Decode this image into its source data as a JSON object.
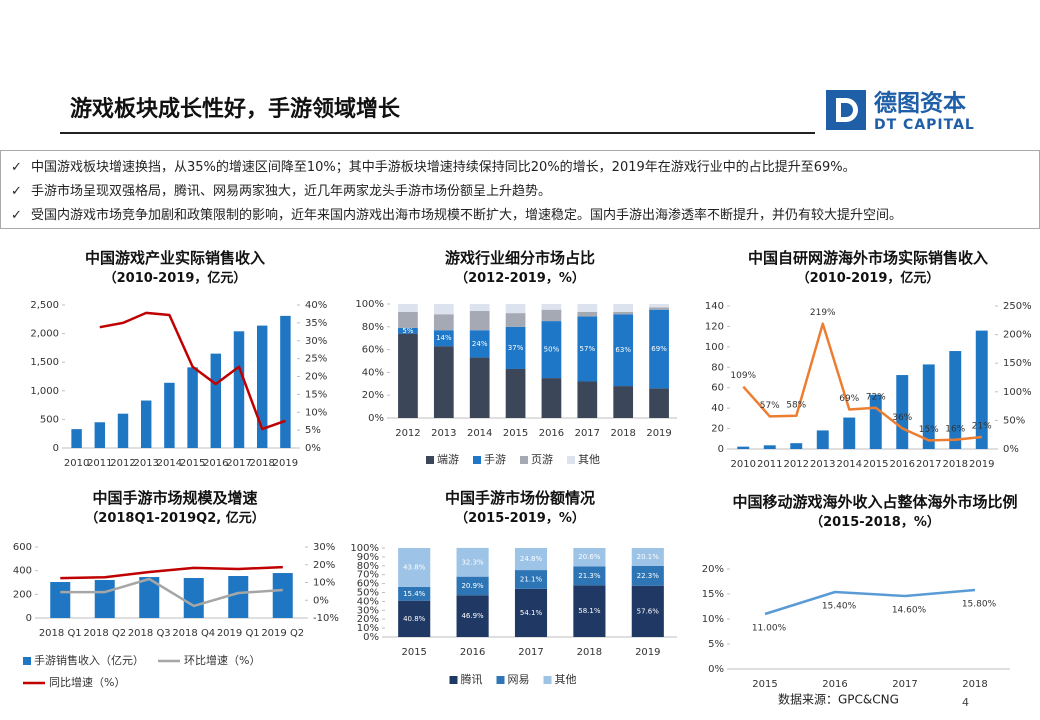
{
  "header": {
    "title": "游戏板块成长性好，手游领域增长",
    "logo_name": "德图资本",
    "logo_subtitle": "DT CAPITAL"
  },
  "bullets": [
    "中国游戏板块增速换挡，从35%的增速区间降至10%；其中手游板块增速持续保持同比20%的增长，2019年在游戏行业中的占比提升至69%。",
    "手游市场呈现双强格局，腾讯、网易两家独大，近几年两家龙头手游市场份额呈上升趋势。",
    "受国内游戏市场竞争加剧和政策限制的影响，近年来国内游戏出海市场规模不断扩大，增速稳定。国内手游出海渗透率不断提升，并仍有较大提升空间。"
  ],
  "chart_data": [
    {
      "type": "bar",
      "title": "中国游戏产业实际销售收入",
      "subtitle": "（2010-2019，亿元）",
      "categories": [
        "2010",
        "2011",
        "2012",
        "2013",
        "2014",
        "2015",
        "2016",
        "2017",
        "2018",
        "2019"
      ],
      "series": [
        {
          "type": "bar",
          "color": "#1f77c3",
          "values": [
            330,
            450,
            600,
            830,
            1140,
            1410,
            1650,
            2040,
            2140,
            2310
          ]
        },
        {
          "type": "line",
          "axis": "y2",
          "color": "#c00000",
          "values": [
            null,
            33.8,
            35,
            37.8,
            37.2,
            22.7,
            17.9,
            22.7,
            5.3,
            7.6
          ]
        }
      ],
      "ylim": [
        0,
        2500
      ],
      "yticks": [
        0,
        500,
        {
          "value": 1000,
          "label": "1,000"
        },
        {
          "value": 1500,
          "label": "1,500"
        },
        {
          "value": 2000,
          "label": "2,000"
        },
        {
          "value": 2500,
          "label": "2,500"
        }
      ],
      "y2lim": [
        0,
        40
      ],
      "y2ticks": [
        {
          "value": 0,
          "label": "0%"
        },
        {
          "value": 5,
          "label": "5%"
        },
        {
          "value": 10,
          "label": "10%"
        },
        {
          "value": 15,
          "label": "15%"
        },
        {
          "value": 20,
          "label": "20%"
        },
        {
          "value": 25,
          "label": "25%"
        },
        {
          "value": 30,
          "label": "30%"
        },
        {
          "value": 35,
          "label": "35%"
        },
        {
          "value": 40,
          "label": "40%"
        }
      ]
    },
    {
      "type": "stacked_bar",
      "title": "游戏行业细分市场占比",
      "subtitle": "（2012-2019，%）",
      "legend": "bottom",
      "categories": [
        "2012",
        "2013",
        "2014",
        "2015",
        "2016",
        "2017",
        "2018",
        "2019"
      ],
      "series": [
        {
          "name": "端游",
          "color": "#3b4658",
          "values": [
            74,
            63,
            53,
            43,
            35,
            32,
            28,
            26
          ]
        },
        {
          "name": "手游",
          "color": "#1f77c8",
          "values": [
            5,
            14,
            24,
            37,
            50,
            57,
            63,
            69
          ],
          "value_labels": [
            "5%",
            "14%",
            "24%",
            "37%",
            "50%",
            "57%",
            "63%",
            "69%"
          ]
        },
        {
          "name": "页游",
          "color": "#a5a9b4",
          "values": [
            14,
            14,
            17,
            12,
            10,
            4,
            2,
            2
          ]
        },
        {
          "name": "其他",
          "color": "#dde3ee",
          "values": [
            7,
            9,
            6,
            8,
            5,
            7,
            7,
            3
          ]
        }
      ],
      "ylim": [
        0,
        100
      ],
      "yticks": [
        {
          "value": 0,
          "label": "0%"
        },
        {
          "value": 20,
          "label": "20%"
        },
        {
          "value": 40,
          "label": "40%"
        },
        {
          "value": 60,
          "label": "60%"
        },
        {
          "value": 80,
          "label": "80%"
        },
        {
          "value": 100,
          "label": "100%"
        }
      ]
    },
    {
      "type": "bar",
      "title": "中国自研网游海外市场实际销售收入",
      "subtitle": "（2010-2019，亿元）",
      "categories": [
        "2010",
        "2011",
        "2012",
        "2013",
        "2014",
        "2015",
        "2016",
        "2017",
        "2018",
        "2019"
      ],
      "series": [
        {
          "type": "bar",
          "color": "#1f77c3",
          "values": [
            2.3,
            3.6,
            5.7,
            18.2,
            30.8,
            53.1,
            72.4,
            82.8,
            95.9,
            115.9
          ]
        },
        {
          "type": "line",
          "axis": "y2",
          "color": "#ed7d31",
          "values": [
            109,
            57,
            58,
            219,
            69,
            72,
            36,
            15,
            16,
            21
          ],
          "value_labels": [
            "109%",
            "57%",
            "58%",
            "219%",
            "69%",
            "72%",
            "36%",
            "15%",
            "16%",
            "21%"
          ]
        }
      ],
      "ylim": [
        0,
        140
      ],
      "yticks": [
        0,
        20,
        40,
        60,
        80,
        100,
        120,
        140
      ],
      "y2lim": [
        0,
        250
      ],
      "y2ticks": [
        {
          "value": 0,
          "label": "0%"
        },
        {
          "value": 50,
          "label": "50%"
        },
        {
          "value": 100,
          "label": "100%"
        },
        {
          "value": 150,
          "label": "150%"
        },
        {
          "value": 200,
          "label": "200%"
        },
        {
          "value": 250,
          "label": "250%"
        }
      ]
    },
    {
      "type": "bar",
      "title": "中国手游市场规模及增速",
      "subtitle": "（2018Q1-2019Q2, 亿元）",
      "legend": "bottom",
      "categories": [
        "2018 Q1",
        "2018 Q2",
        "2018 Q3",
        "2018 Q4",
        "2019 Q1",
        "2019 Q2"
      ],
      "series": [
        {
          "type": "bar",
          "name": "手游销售收入（亿元）",
          "color": "#1f77c3",
          "values": [
            304,
            321,
            346,
            338,
            355,
            380
          ]
        },
        {
          "type": "line",
          "axis": "y2",
          "name": "环比增速（%）",
          "color": "#a6a6a6",
          "values": [
            4.6,
            4.6,
            12,
            -3.2,
            4.1,
            5.8
          ]
        },
        {
          "type": "line",
          "axis": "y2",
          "name": "同比增速（%）",
          "color": "#c00000",
          "values": [
            12.5,
            13,
            15.9,
            18.2,
            17.6,
            18.7
          ]
        }
      ],
      "ylim": [
        0,
        600
      ],
      "yticks": [
        0,
        200,
        400,
        600
      ],
      "y2lim": [
        -10,
        30
      ],
      "y2ticks": [
        {
          "value": -10,
          "label": "-10%"
        },
        {
          "value": 0,
          "label": "0%"
        },
        {
          "value": 10,
          "label": "10%"
        },
        {
          "value": 20,
          "label": "20%"
        },
        {
          "value": 30,
          "label": "30%"
        }
      ]
    },
    {
      "type": "stacked_bar",
      "title": "中国手游市场份额情况",
      "subtitle": "（2015-2019，%）",
      "legend": "bottom",
      "categories": [
        "2015",
        "2016",
        "2017",
        "2018",
        "2019"
      ],
      "series": [
        {
          "name": "腾讯",
          "color": "#1f3864",
          "values": [
            40.8,
            46.9,
            54.1,
            58.1,
            57.6
          ],
          "value_labels": [
            "40.8%",
            "46.9%",
            "54.1%",
            "58.1%",
            "57.6%"
          ]
        },
        {
          "name": "网易",
          "color": "#2e75b6",
          "values": [
            15.4,
            20.9,
            21.1,
            21.3,
            22.3
          ],
          "value_labels": [
            "15.4%",
            "20.9%",
            "21.1%",
            "21.3%",
            "22.3%"
          ]
        },
        {
          "name": "其他",
          "color": "#9dc3e6",
          "values": [
            43.8,
            32.3,
            24.8,
            20.6,
            20.1
          ],
          "value_labels": [
            "43.8%",
            "32.3%",
            "24.8%",
            "20.6%",
            "20.1%"
          ]
        }
      ],
      "ylim": [
        0,
        100
      ],
      "yticks": [
        {
          "value": 0,
          "label": "0%"
        },
        {
          "value": 10,
          "label": "10%"
        },
        {
          "value": 20,
          "label": "20%"
        },
        {
          "value": 30,
          "label": "30%"
        },
        {
          "value": 40,
          "label": "40%"
        },
        {
          "value": 50,
          "label": "50%"
        },
        {
          "value": 60,
          "label": "60%"
        },
        {
          "value": 70,
          "label": "70%"
        },
        {
          "value": 80,
          "label": "80%"
        },
        {
          "value": 90,
          "label": "90%"
        },
        {
          "value": 100,
          "label": "100%"
        }
      ]
    },
    {
      "type": "line",
      "title": "中国移动游戏海外收入占整体海外市场比例",
      "subtitle": "（2015-2018，%）",
      "categories": [
        "2015",
        "2016",
        "2017",
        "2018"
      ],
      "series": [
        {
          "color": "#5b9bd5",
          "values": [
            11,
            15.4,
            14.6,
            15.8
          ],
          "value_labels": [
            "11.00%",
            "15.40%",
            "14.60%",
            "15.80%"
          ]
        }
      ],
      "ylim": [
        0,
        20
      ],
      "yticks": [
        {
          "value": 0,
          "label": "0%"
        },
        {
          "value": 5,
          "label": "5%"
        },
        {
          "value": 10,
          "label": "10%"
        },
        {
          "value": 15,
          "label": "15%"
        },
        {
          "value": 20,
          "label": "20%"
        }
      ]
    }
  ],
  "source": "数据来源：GPC&CNG",
  "page_number": "4"
}
